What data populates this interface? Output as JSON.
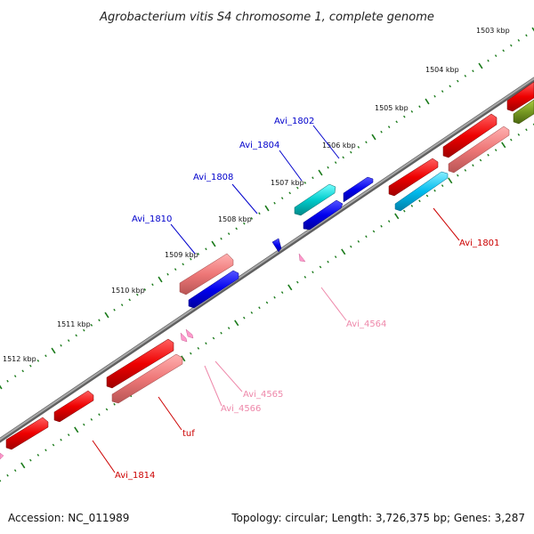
{
  "title": "Agrobacterium vitis S4 chromosome 1, complete genome",
  "ticks": [
    "1503 kbp",
    "1504 kbp",
    "1505 kbp",
    "1506 kbp",
    "1507 kbp",
    "1508 kbp",
    "1509 kbp",
    "1510 kbp",
    "1511 kbp",
    "1512 kbp"
  ],
  "gene_labels": {
    "avi_1802": "Avi_1802",
    "avi_1804": "Avi_1804",
    "avi_1808": "Avi_1808",
    "avi_1810": "Avi_1810",
    "avi_1801": "Avi_1801",
    "avi_4564": "Avi_4564",
    "avi_4565": "Avi_4565",
    "avi_4566": "Avi_4566",
    "tuf": "tuf",
    "avi_1814": "Avi_1814"
  },
  "footer": {
    "accession": "Accession: NC_011989",
    "topology": "Topology: circular; Length: 3,726,375 bp; Genes: 3,287"
  },
  "colors": {
    "blue_label": "#0000cc",
    "red_label": "#cc0000",
    "pink_label": "#ee88aa",
    "backbone": "#808080",
    "ticks": "#1a7a1a"
  }
}
